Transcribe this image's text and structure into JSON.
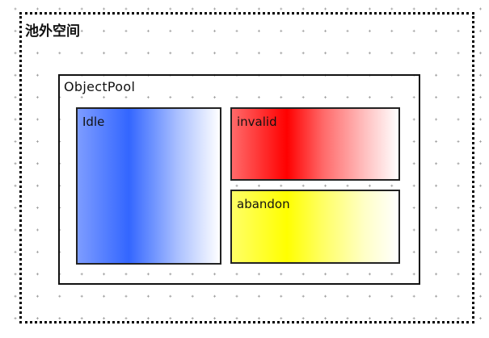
{
  "diagram": {
    "outer_region": {
      "label": "池外空间",
      "border_style": "dotted"
    },
    "pool": {
      "label": "ObjectPool"
    },
    "states": [
      {
        "label": "Idle",
        "color": "#3366ff"
      },
      {
        "label": "invalid",
        "color": "#ff0000"
      },
      {
        "label": "abandon",
        "color": "#ffff00"
      }
    ],
    "background": "plus-grid"
  }
}
